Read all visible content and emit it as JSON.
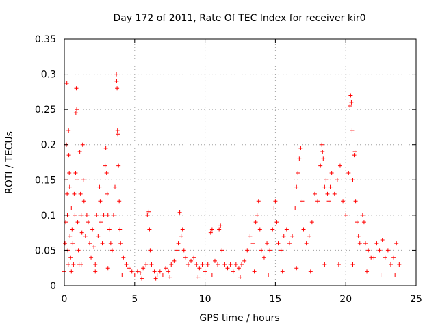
{
  "chart_data": {
    "type": "scatter",
    "title": "Day 172 of 2011, Rate Of TEC Index for receiver kir0",
    "xlabel": "GPS time / hours",
    "ylabel": "ROTI / TECUs",
    "xlim": [
      0,
      25
    ],
    "ylim": [
      0,
      0.35
    ],
    "x_ticks": [
      0,
      5,
      10,
      15,
      20,
      25
    ],
    "x_tick_labels": [
      "0",
      "5",
      "10",
      "15",
      "20",
      "25"
    ],
    "y_ticks": [
      0,
      0.05,
      0.1,
      0.15,
      0.2,
      0.25,
      0.3,
      0.35
    ],
    "y_tick_labels": [
      "0",
      "0.05",
      "0.1",
      "0.15",
      "0.2",
      "0.25",
      "0.3",
      "0.35"
    ],
    "grid": true,
    "marker": "+",
    "color": "#ff0000",
    "series": [
      {
        "points": [
          [
            0.0,
            0.02
          ],
          [
            0.05,
            0.06
          ],
          [
            0.1,
            0.09
          ],
          [
            0.12,
            0.15
          ],
          [
            0.15,
            0.2
          ],
          [
            0.18,
            0.287
          ],
          [
            0.2,
            0.13
          ],
          [
            0.22,
            0.1
          ],
          [
            0.25,
            0.05
          ],
          [
            0.28,
            0.03
          ],
          [
            0.3,
            0.22
          ],
          [
            0.32,
            0.185
          ],
          [
            0.35,
            0.16
          ],
          [
            0.38,
            0.14
          ],
          [
            0.4,
            0.07
          ],
          [
            0.45,
            0.04
          ],
          [
            0.5,
            0.11
          ],
          [
            0.55,
            0.08
          ],
          [
            0.6,
            0.06
          ],
          [
            0.65,
            0.03
          ],
          [
            0.7,
            0.13
          ],
          [
            0.75,
            0.1
          ],
          [
            0.8,
            0.16
          ],
          [
            0.82,
            0.245
          ],
          [
            0.85,
            0.28
          ],
          [
            0.88,
            0.25
          ],
          [
            0.9,
            0.15
          ],
          [
            0.95,
            0.09
          ],
          [
            1.0,
            0.05
          ],
          [
            1.05,
            0.03
          ],
          [
            1.1,
            0.19
          ],
          [
            1.15,
            0.13
          ],
          [
            1.2,
            0.1
          ],
          [
            1.25,
            0.075
          ],
          [
            1.3,
            0.2
          ],
          [
            1.35,
            0.15
          ],
          [
            1.4,
            0.12
          ],
          [
            1.5,
            0.07
          ],
          [
            1.6,
            0.1
          ],
          [
            1.7,
            0.09
          ],
          [
            1.8,
            0.06
          ],
          [
            1.9,
            0.04
          ],
          [
            2.0,
            0.08
          ],
          [
            2.1,
            0.055
          ],
          [
            2.2,
            0.03
          ],
          [
            2.3,
            0.1
          ],
          [
            2.4,
            0.07
          ],
          [
            2.5,
            0.14
          ],
          [
            2.55,
            0.12
          ],
          [
            2.6,
            0.09
          ],
          [
            2.7,
            0.06
          ],
          [
            2.8,
            0.1
          ],
          [
            2.9,
            0.17
          ],
          [
            2.95,
            0.195
          ],
          [
            3.0,
            0.16
          ],
          [
            3.05,
            0.13
          ],
          [
            3.1,
            0.1
          ],
          [
            3.2,
            0.08
          ],
          [
            3.3,
            0.06
          ],
          [
            3.4,
            0.05
          ],
          [
            3.5,
            0.1
          ],
          [
            3.6,
            0.14
          ],
          [
            3.7,
            0.3
          ],
          [
            3.72,
            0.29
          ],
          [
            3.75,
            0.28
          ],
          [
            3.78,
            0.22
          ],
          [
            3.8,
            0.215
          ],
          [
            3.85,
            0.17
          ],
          [
            3.9,
            0.12
          ],
          [
            3.95,
            0.08
          ],
          [
            4.0,
            0.06
          ],
          [
            4.2,
            0.04
          ],
          [
            4.4,
            0.03
          ],
          [
            4.6,
            0.025
          ],
          [
            4.8,
            0.02
          ],
          [
            5.0,
            0.015
          ],
          [
            5.2,
            0.02
          ],
          [
            5.4,
            0.018
          ],
          [
            5.6,
            0.025
          ],
          [
            5.8,
            0.03
          ],
          [
            5.9,
            0.1
          ],
          [
            6.0,
            0.105
          ],
          [
            6.05,
            0.08
          ],
          [
            6.1,
            0.05
          ],
          [
            6.2,
            0.03
          ],
          [
            6.4,
            0.02
          ],
          [
            6.6,
            0.015
          ],
          [
            6.8,
            0.02
          ],
          [
            7.0,
            0.015
          ],
          [
            7.2,
            0.025
          ],
          [
            7.4,
            0.02
          ],
          [
            7.6,
            0.03
          ],
          [
            7.8,
            0.035
          ],
          [
            8.0,
            0.05
          ],
          [
            8.1,
            0.06
          ],
          [
            8.2,
            0.104
          ],
          [
            8.3,
            0.07
          ],
          [
            8.4,
            0.08
          ],
          [
            8.5,
            0.05
          ],
          [
            8.6,
            0.04
          ],
          [
            8.8,
            0.03
          ],
          [
            9.0,
            0.035
          ],
          [
            9.2,
            0.04
          ],
          [
            9.4,
            0.03
          ],
          [
            9.6,
            0.025
          ],
          [
            9.8,
            0.03
          ],
          [
            10.0,
            0.02
          ],
          [
            10.2,
            0.03
          ],
          [
            10.4,
            0.075
          ],
          [
            10.5,
            0.08
          ],
          [
            10.7,
            0.035
          ],
          [
            10.9,
            0.03
          ],
          [
            11.0,
            0.08
          ],
          [
            11.1,
            0.085
          ],
          [
            11.2,
            0.05
          ],
          [
            11.4,
            0.03
          ],
          [
            11.6,
            0.025
          ],
          [
            11.8,
            0.03
          ],
          [
            12.0,
            0.02
          ],
          [
            12.2,
            0.03
          ],
          [
            12.4,
            0.025
          ],
          [
            12.6,
            0.03
          ],
          [
            12.8,
            0.035
          ],
          [
            13.0,
            0.05
          ],
          [
            13.2,
            0.07
          ],
          [
            13.4,
            0.06
          ],
          [
            13.6,
            0.09
          ],
          [
            13.7,
            0.1
          ],
          [
            13.8,
            0.12
          ],
          [
            13.9,
            0.08
          ],
          [
            14.0,
            0.05
          ],
          [
            14.2,
            0.04
          ],
          [
            14.4,
            0.06
          ],
          [
            14.6,
            0.05
          ],
          [
            14.8,
            0.08
          ],
          [
            14.9,
            0.11
          ],
          [
            15.0,
            0.12
          ],
          [
            15.1,
            0.09
          ],
          [
            15.2,
            0.06
          ],
          [
            15.4,
            0.05
          ],
          [
            15.6,
            0.07
          ],
          [
            15.8,
            0.08
          ],
          [
            16.0,
            0.06
          ],
          [
            16.2,
            0.07
          ],
          [
            16.4,
            0.11
          ],
          [
            16.5,
            0.14
          ],
          [
            16.6,
            0.16
          ],
          [
            16.7,
            0.18
          ],
          [
            16.8,
            0.195
          ],
          [
            16.9,
            0.12
          ],
          [
            17.0,
            0.08
          ],
          [
            17.2,
            0.06
          ],
          [
            17.4,
            0.07
          ],
          [
            17.6,
            0.09
          ],
          [
            17.8,
            0.13
          ],
          [
            18.0,
            0.12
          ],
          [
            18.2,
            0.17
          ],
          [
            18.3,
            0.2
          ],
          [
            18.35,
            0.19
          ],
          [
            18.4,
            0.18
          ],
          [
            18.5,
            0.14
          ],
          [
            18.6,
            0.15
          ],
          [
            18.7,
            0.13
          ],
          [
            18.8,
            0.12
          ],
          [
            18.9,
            0.14
          ],
          [
            19.0,
            0.16
          ],
          [
            19.2,
            0.13
          ],
          [
            19.4,
            0.15
          ],
          [
            19.6,
            0.17
          ],
          [
            19.8,
            0.12
          ],
          [
            20.0,
            0.1
          ],
          [
            20.2,
            0.16
          ],
          [
            20.3,
            0.255
          ],
          [
            20.35,
            0.27
          ],
          [
            20.4,
            0.26
          ],
          [
            20.45,
            0.22
          ],
          [
            20.5,
            0.15
          ],
          [
            20.6,
            0.185
          ],
          [
            20.65,
            0.19
          ],
          [
            20.7,
            0.12
          ],
          [
            20.8,
            0.09
          ],
          [
            20.9,
            0.07
          ],
          [
            21.0,
            0.06
          ],
          [
            21.2,
            0.1
          ],
          [
            21.3,
            0.09
          ],
          [
            21.4,
            0.06
          ],
          [
            21.6,
            0.05
          ],
          [
            21.8,
            0.04
          ],
          [
            22.0,
            0.04
          ],
          [
            22.2,
            0.06
          ],
          [
            22.4,
            0.05
          ],
          [
            22.6,
            0.065
          ],
          [
            22.8,
            0.04
          ],
          [
            23.0,
            0.05
          ],
          [
            23.2,
            0.03
          ],
          [
            23.4,
            0.04
          ],
          [
            23.6,
            0.06
          ],
          [
            23.8,
            0.03
          ],
          [
            0.5,
            0.02
          ],
          [
            1.2,
            0.03
          ],
          [
            2.2,
            0.02
          ],
          [
            3.1,
            0.025
          ],
          [
            4.1,
            0.015
          ],
          [
            5.5,
            0.01
          ],
          [
            6.5,
            0.01
          ],
          [
            7.5,
            0.012
          ],
          [
            9.5,
            0.012
          ],
          [
            10.5,
            0.015
          ],
          [
            12.5,
            0.012
          ],
          [
            13.5,
            0.02
          ],
          [
            14.5,
            0.015
          ],
          [
            15.5,
            0.02
          ],
          [
            16.5,
            0.025
          ],
          [
            17.5,
            0.02
          ],
          [
            18.5,
            0.03
          ],
          [
            19.5,
            0.03
          ],
          [
            20.5,
            0.03
          ],
          [
            21.5,
            0.02
          ],
          [
            22.5,
            0.015
          ],
          [
            23.5,
            0.015
          ]
        ]
      }
    ]
  }
}
